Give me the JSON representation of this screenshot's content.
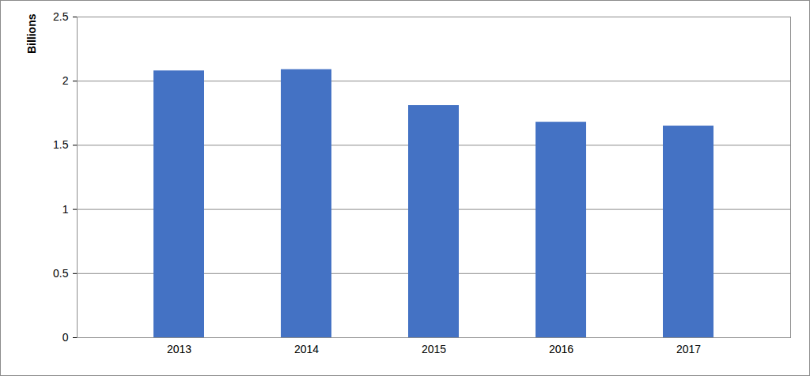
{
  "chart_data": {
    "type": "bar",
    "y_label": "Billions",
    "categories": [
      "2013",
      "2014",
      "2015",
      "2016",
      "2017"
    ],
    "values": [
      2.08,
      2.09,
      1.81,
      1.68,
      1.65
    ],
    "color": "#4472c4",
    "ylim": [
      0,
      2.5
    ],
    "yticks": [
      0,
      0.5,
      1,
      1.5,
      2,
      2.5
    ],
    "grid": true
  }
}
